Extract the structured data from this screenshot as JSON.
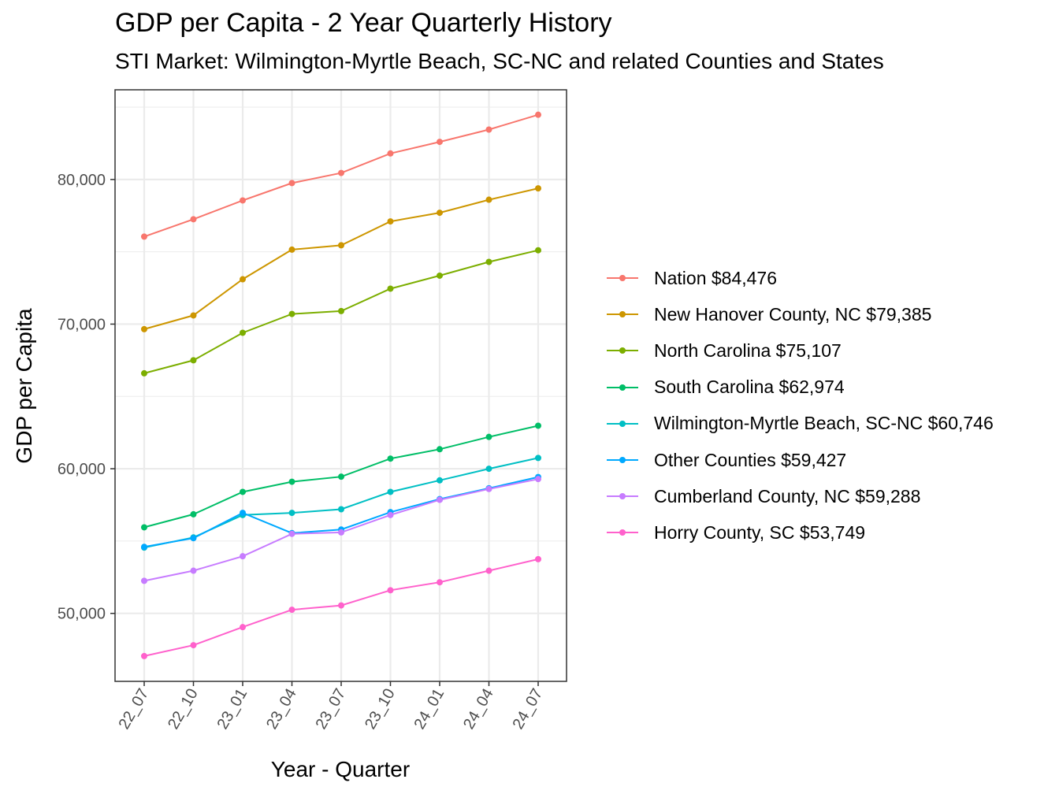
{
  "chart_data": {
    "type": "line",
    "title": "GDP per Capita - 2 Year Quarterly History",
    "subtitle": "STI Market: Wilmington-Myrtle Beach, SC-NC and related Counties and States",
    "xlabel": "Year - Quarter",
    "ylabel": "GDP per Capita",
    "categories": [
      "22_07",
      "22_10",
      "23_01",
      "23_04",
      "23_07",
      "23_10",
      "24_01",
      "24_04",
      "24_07"
    ],
    "ylim": [
      45300,
      86200
    ],
    "yticks": [
      50000,
      60000,
      70000,
      80000
    ],
    "ytick_labels": [
      "50,000",
      "60,000",
      "70,000",
      "80,000"
    ],
    "grid": true,
    "legend_position": "right",
    "series": [
      {
        "name": "Nation $84,476",
        "color": "#F8766D",
        "values": [
          76050,
          77250,
          78550,
          79750,
          80450,
          81800,
          82600,
          83450,
          84476
        ]
      },
      {
        "name": "New Hanover County, NC $79,385",
        "color": "#CD9600",
        "values": [
          69650,
          70600,
          73100,
          75150,
          75450,
          77100,
          77700,
          78600,
          79385
        ]
      },
      {
        "name": "North Carolina $75,107",
        "color": "#7CAE00",
        "values": [
          66600,
          67500,
          69400,
          70700,
          70900,
          72450,
          73350,
          74300,
          75107
        ]
      },
      {
        "name": "South Carolina $62,974",
        "color": "#00BE67",
        "values": [
          55950,
          56850,
          58400,
          59100,
          59450,
          60700,
          61350,
          62200,
          62974
        ]
      },
      {
        "name": "Wilmington-Myrtle Beach, SC-NC $60,746",
        "color": "#00BFC4",
        "values": [
          54550,
          55250,
          56800,
          56950,
          57200,
          58400,
          59200,
          60000,
          60746
        ]
      },
      {
        "name": "Other Counties $59,427",
        "color": "#00A9FF",
        "values": [
          54600,
          55200,
          56950,
          55550,
          55800,
          57000,
          57900,
          58650,
          59427
        ]
      },
      {
        "name": "Cumberland County, NC $59,288",
        "color": "#C77CFF",
        "values": [
          52250,
          52950,
          53950,
          55500,
          55600,
          56800,
          57850,
          58600,
          59288
        ]
      },
      {
        "name": "Horry County, SC $53,749",
        "color": "#FF61CC",
        "values": [
          47050,
          47800,
          49050,
          50250,
          50550,
          51600,
          52150,
          52950,
          53749
        ]
      }
    ]
  }
}
